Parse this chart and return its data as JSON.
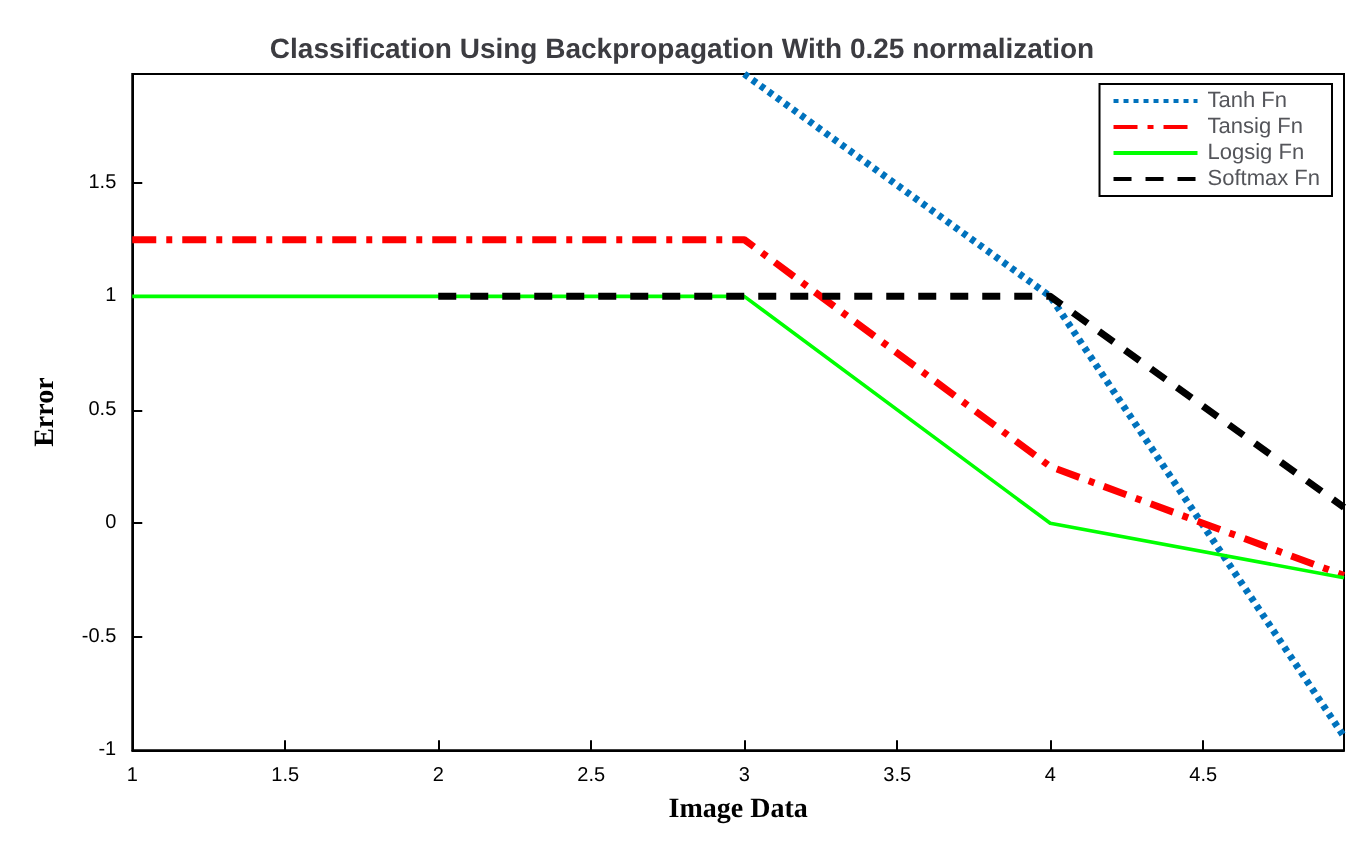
{
  "chart_data": {
    "type": "line",
    "title": "Classification Using Backpropagation With 0.25 normalization",
    "xlabel": "Image Data",
    "ylabel": "Error",
    "xlim": [
      1,
      4.96
    ],
    "xticks": [
      1,
      1.5,
      2,
      2.5,
      3,
      3.5,
      4,
      4.5
    ],
    "ylim": [
      -1,
      1.98
    ],
    "yticks": [
      -1,
      -0.5,
      0,
      0.5,
      1,
      1.5
    ],
    "grid": false,
    "legend": "top right",
    "marker": "none",
    "series": [
      {
        "name": "Tanh Fn",
        "color": "#0072bd",
        "line_style": "dotted",
        "x": [
          3,
          4,
          4.96
        ],
        "values": [
          1.98,
          1,
          -0.94
        ]
      },
      {
        "name": "Tansig Fn",
        "color": "#ff0000",
        "line_style": "dashdot",
        "x": [
          1,
          3,
          4,
          4.96
        ],
        "values": [
          1.25,
          1.25,
          0.25,
          -0.23
        ]
      },
      {
        "name": "Logsig Fn",
        "color": "#00ff00",
        "line_style": "solid",
        "x": [
          1,
          3,
          4,
          4.96
        ],
        "values": [
          1,
          1,
          0,
          -0.24
        ]
      },
      {
        "name": "Softmax Fn",
        "color": "#000000",
        "line_style": "dashed",
        "x": [
          2,
          3,
          4,
          4.96
        ],
        "values": [
          1,
          1,
          1,
          0.07
        ]
      }
    ]
  }
}
